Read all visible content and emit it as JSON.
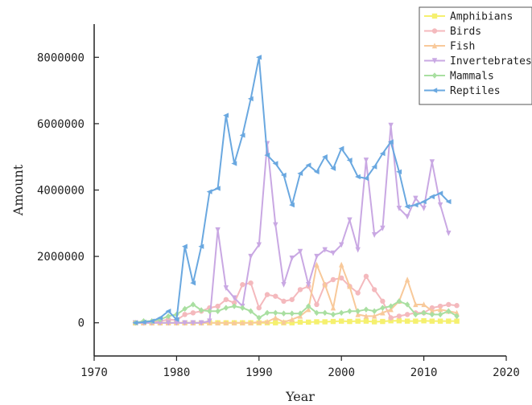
{
  "chart_data": {
    "type": "line",
    "title": "",
    "xlabel": "Year",
    "ylabel": "Amount",
    "xlim": [
      1970,
      2020
    ],
    "ylim": [
      -1000000,
      9000000
    ],
    "x_ticks": [
      1970,
      1980,
      1990,
      2000,
      2010,
      2020
    ],
    "y_ticks": [
      0,
      2000000,
      4000000,
      6000000,
      8000000
    ],
    "x_tick_labels": [
      "1970",
      "1980",
      "1990",
      "2000",
      "2010",
      "2020"
    ],
    "y_tick_labels": [
      "0",
      "2000000",
      "4000000",
      "6000000",
      "8000000"
    ],
    "grid": false,
    "legend_position": "top-right",
    "series": [
      {
        "name": "Amphibians",
        "color": "#f5f06e",
        "x": [
          1975,
          1976,
          1977,
          1978,
          1979,
          1980,
          1981,
          1982,
          1983,
          1984,
          1985,
          1986,
          1987,
          1988,
          1989,
          1990,
          1991,
          1992,
          1993,
          1994,
          1995,
          1996,
          1997,
          1998,
          1999,
          2000,
          2001,
          2002,
          2003,
          2004,
          2005,
          2006,
          2007,
          2008,
          2009,
          2010,
          2011,
          2012,
          2013,
          2014
        ],
        "values": [
          0,
          0,
          0,
          0,
          0,
          0,
          0,
          0,
          0,
          0,
          0,
          0,
          0,
          0,
          0,
          0,
          0,
          0,
          0,
          0,
          20000,
          20000,
          30000,
          30000,
          40000,
          50000,
          40000,
          50000,
          50000,
          30000,
          40000,
          60000,
          60000,
          50000,
          50000,
          60000,
          50000,
          50000,
          50000,
          50000
        ]
      },
      {
        "name": "Birds",
        "color": "#f4b9bd",
        "x": [
          1975,
          1976,
          1977,
          1978,
          1979,
          1980,
          1981,
          1982,
          1983,
          1984,
          1985,
          1986,
          1987,
          1988,
          1989,
          1990,
          1991,
          1992,
          1993,
          1994,
          1995,
          1996,
          1997,
          1998,
          1999,
          2000,
          2001,
          2002,
          2003,
          2004,
          2005,
          2006,
          2007,
          2008,
          2009,
          2010,
          2011,
          2012,
          2013,
          2014
        ],
        "values": [
          0,
          0,
          20000,
          50000,
          100000,
          80000,
          250000,
          300000,
          350000,
          450000,
          500000,
          700000,
          600000,
          1150000,
          1200000,
          450000,
          850000,
          800000,
          650000,
          700000,
          1000000,
          1100000,
          550000,
          1150000,
          1300000,
          1350000,
          1100000,
          900000,
          1400000,
          1000000,
          650000,
          150000,
          200000,
          250000,
          300000,
          300000,
          450000,
          500000,
          550000,
          520000
        ]
      },
      {
        "name": "Fish",
        "color": "#f8c99a",
        "x": [
          1975,
          1976,
          1977,
          1978,
          1979,
          1980,
          1981,
          1982,
          1983,
          1984,
          1985,
          1986,
          1987,
          1988,
          1989,
          1990,
          1991,
          1992,
          1993,
          1994,
          1995,
          1996,
          1997,
          1998,
          1999,
          2000,
          2001,
          2002,
          2003,
          2004,
          2005,
          2006,
          2007,
          2008,
          2009,
          2010,
          2011,
          2012,
          2013,
          2014
        ],
        "values": [
          0,
          0,
          0,
          0,
          0,
          0,
          0,
          0,
          0,
          0,
          0,
          0,
          0,
          0,
          0,
          20000,
          30000,
          150000,
          20000,
          100000,
          200000,
          400000,
          1750000,
          1150000,
          450000,
          1750000,
          1100000,
          250000,
          200000,
          200000,
          300000,
          400000,
          650000,
          1300000,
          550000,
          550000,
          350000,
          400000,
          350000,
          300000
        ]
      },
      {
        "name": "Invertebrates",
        "color": "#c9a8e3",
        "x": [
          1975,
          1976,
          1977,
          1978,
          1979,
          1980,
          1981,
          1982,
          1983,
          1984,
          1985,
          1986,
          1987,
          1988,
          1989,
          1990,
          1991,
          1992,
          1993,
          1994,
          1995,
          1996,
          1997,
          1998,
          1999,
          2000,
          2001,
          2002,
          2003,
          2004,
          2005,
          2006,
          2007,
          2008,
          2009,
          2010,
          2011,
          2012,
          2013
        ],
        "values": [
          0,
          0,
          0,
          0,
          0,
          0,
          0,
          0,
          0,
          50000,
          2800000,
          1050000,
          750000,
          500000,
          2000000,
          2350000,
          5400000,
          2950000,
          1150000,
          1950000,
          2150000,
          1150000,
          2000000,
          2200000,
          2100000,
          2350000,
          3100000,
          2200000,
          4900000,
          2650000,
          2850000,
          5950000,
          3450000,
          3200000,
          3750000,
          3450000,
          4850000,
          3550000,
          2700000
        ]
      },
      {
        "name": "Mammals",
        "color": "#a9dfa1",
        "x": [
          1975,
          1976,
          1977,
          1978,
          1979,
          1980,
          1981,
          1982,
          1983,
          1984,
          1985,
          1986,
          1987,
          1988,
          1989,
          1990,
          1991,
          1992,
          1993,
          1994,
          1995,
          1996,
          1997,
          1998,
          1999,
          2000,
          2001,
          2002,
          2003,
          2004,
          2005,
          2006,
          2007,
          2008,
          2009,
          2010,
          2011,
          2012,
          2013,
          2014
        ],
        "values": [
          0,
          50000,
          50000,
          100000,
          200000,
          250000,
          420000,
          550000,
          380000,
          350000,
          350000,
          450000,
          500000,
          450000,
          350000,
          150000,
          300000,
          300000,
          280000,
          280000,
          280000,
          500000,
          300000,
          300000,
          250000,
          300000,
          350000,
          350000,
          400000,
          350000,
          450000,
          500000,
          650000,
          550000,
          250000,
          300000,
          250000,
          250000,
          350000,
          200000
        ]
      },
      {
        "name": "Reptiles",
        "color": "#6aa8e0",
        "x": [
          1975,
          1976,
          1977,
          1978,
          1979,
          1980,
          1981,
          1982,
          1983,
          1984,
          1985,
          1986,
          1987,
          1988,
          1989,
          1990,
          1991,
          1992,
          1993,
          1994,
          1995,
          1996,
          1997,
          1998,
          1999,
          2000,
          2001,
          2002,
          2003,
          2004,
          2005,
          2006,
          2007,
          2008,
          2009,
          2010,
          2011,
          2012,
          2013
        ],
        "values": [
          0,
          20000,
          50000,
          150000,
          350000,
          100000,
          2300000,
          1200000,
          2300000,
          3950000,
          4050000,
          6250000,
          4800000,
          5650000,
          6750000,
          8000000,
          5050000,
          4800000,
          4450000,
          3550000,
          4500000,
          4750000,
          4550000,
          5000000,
          4650000,
          5250000,
          4900000,
          4400000,
          4350000,
          4700000,
          5100000,
          5450000,
          4550000,
          3500000,
          3550000,
          3650000,
          3800000,
          3900000,
          3650000
        ]
      }
    ]
  }
}
